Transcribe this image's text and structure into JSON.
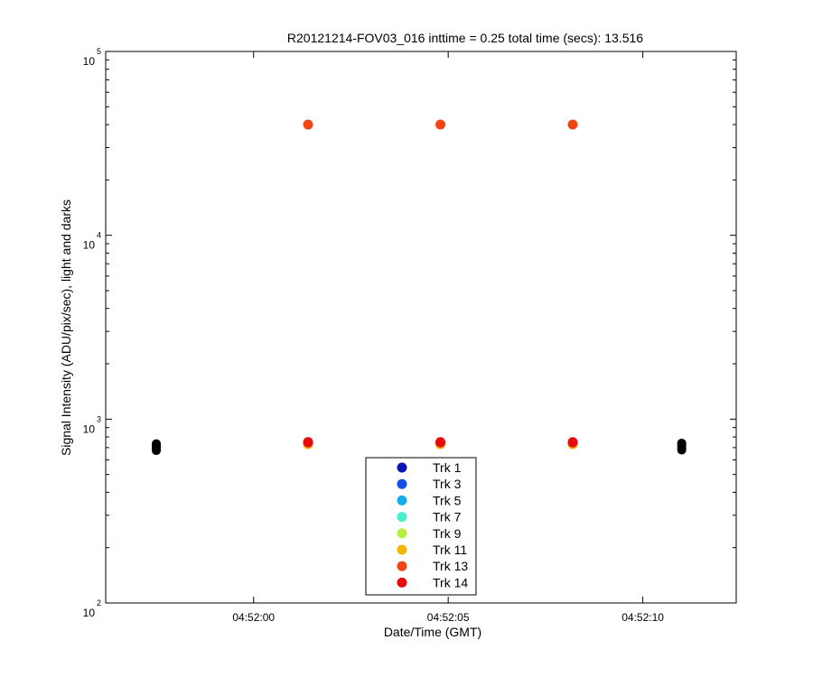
{
  "chart_data": {
    "type": "scatter",
    "title": "R20121214-FOV03_016 inttime = 0.25 total time (secs): 13.516",
    "xlabel": "Date/Time (GMT)",
    "ylabel": "Signal Intensity (ADU/pix/sec), light and darks",
    "x_scale": "time",
    "y_scale": "log",
    "xlim": [
      "04:51:56.2",
      "04:52:12.4"
    ],
    "ylim": [
      100,
      100000
    ],
    "x_ticks": [
      "04:52:00",
      "04:52:05",
      "04:52:10"
    ],
    "y_ticks": [
      {
        "base": "10",
        "exp": "2"
      },
      {
        "base": "10",
        "exp": "3"
      },
      {
        "base": "10",
        "exp": "4"
      },
      {
        "base": "10",
        "exp": "5"
      }
    ],
    "grid": false,
    "legend_position": "bottom-center",
    "series": [
      {
        "name": "Trk 1",
        "color": "#0a14b4",
        "x": [],
        "y": []
      },
      {
        "name": "Trk 3",
        "color": "#1450e6",
        "x": [],
        "y": []
      },
      {
        "name": "Trk 5",
        "color": "#14aaf0",
        "x": [],
        "y": []
      },
      {
        "name": "Trk 7",
        "color": "#46f0c8",
        "x": [],
        "y": []
      },
      {
        "name": "Trk 9",
        "color": "#b4f03c",
        "x": [],
        "y": []
      },
      {
        "name": "Trk 11",
        "color": "#f5b400",
        "x": [
          "04:52:01.4",
          "04:52:04.8",
          "04:52:08.2"
        ],
        "y": [
          730,
          730,
          730
        ]
      },
      {
        "name": "Trk 13",
        "color": "#f04614",
        "x": [
          "04:52:01.4",
          "04:52:04.8",
          "04:52:08.2",
          "04:52:01.4",
          "04:52:04.8",
          "04:52:08.2"
        ],
        "y": [
          40000,
          40000,
          40000,
          745,
          745,
          745
        ]
      },
      {
        "name": "Trk 14",
        "color": "#e60a0a",
        "x": [
          "04:52:01.4",
          "04:52:04.8",
          "04:52:08.2"
        ],
        "y": [
          750,
          750,
          750
        ]
      }
    ],
    "dark_frames": {
      "color": "#000000",
      "x": [
        "04:51:57.5",
        "04:51:57.5",
        "04:51:57.5",
        "04:51:57.5",
        "04:51:57.5",
        "04:52:11.0",
        "04:52:11.0",
        "04:52:11.0",
        "04:52:11.0",
        "04:52:11.0"
      ],
      "y": [
        675,
        690,
        705,
        720,
        735,
        680,
        695,
        710,
        725,
        740
      ]
    }
  }
}
